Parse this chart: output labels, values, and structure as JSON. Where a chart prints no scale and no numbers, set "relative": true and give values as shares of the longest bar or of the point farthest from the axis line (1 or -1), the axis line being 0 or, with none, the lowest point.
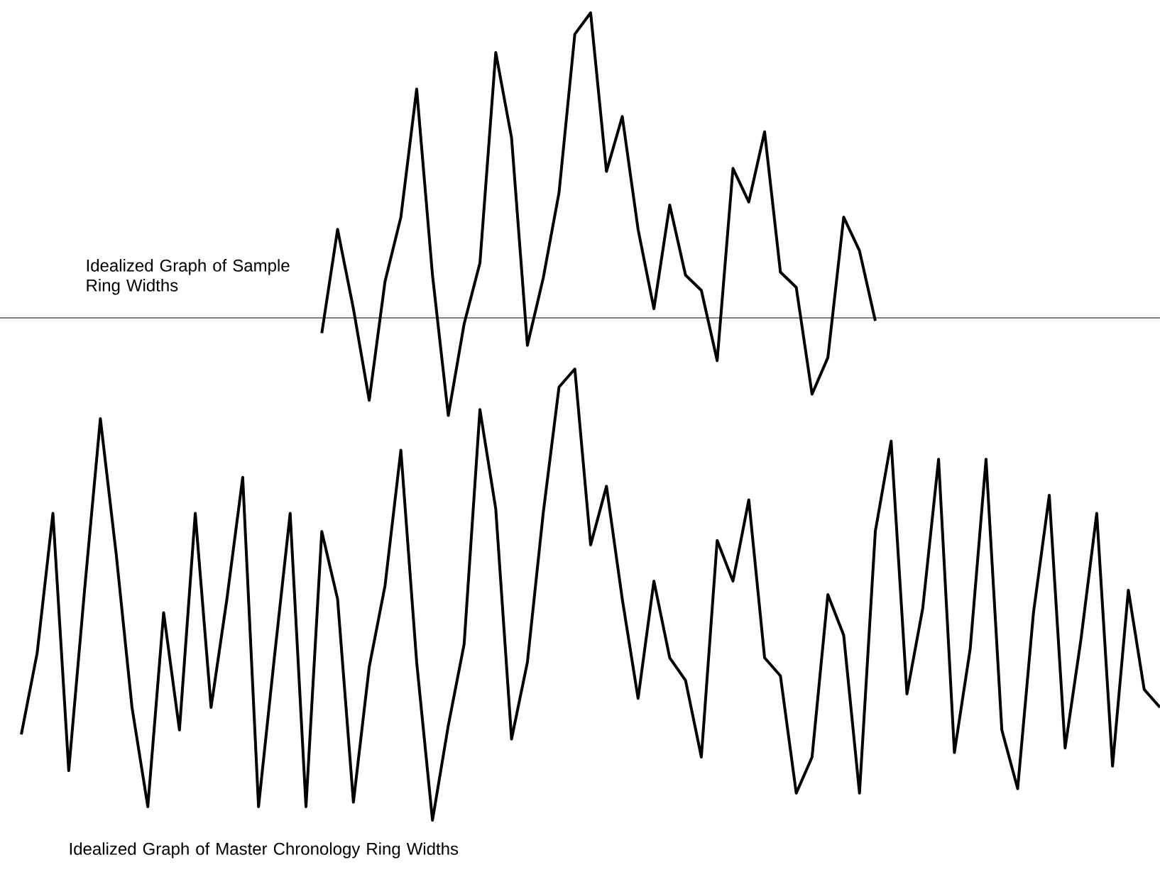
{
  "chart_data": [
    {
      "type": "line",
      "title": "Idealized Graph of Sample Ring Widths",
      "relative": true,
      "categories": [
        null,
        null,
        null,
        null,
        null,
        null,
        null,
        null,
        null,
        null,
        null,
        null,
        null,
        null,
        null,
        null,
        null,
        null,
        null,
        null,
        null,
        null,
        null,
        null,
        null,
        null,
        null,
        null,
        null,
        null,
        null,
        null,
        null,
        null,
        null,
        null,
        null,
        null,
        null,
        null,
        null,
        null,
        null,
        null,
        null,
        null,
        null,
        null,
        null,
        null,
        null,
        null,
        null,
        null,
        null,
        null,
        null,
        null,
        null,
        null,
        null,
        null,
        null,
        null,
        null,
        null,
        null,
        null,
        null,
        null,
        null,
        null,
        null
      ],
      "series": [
        {
          "color": "#000000",
          "values": [
            null,
            null,
            null,
            null,
            null,
            null,
            null,
            null,
            null,
            null,
            null,
            null,
            null,
            null,
            null,
            null,
            null,
            null,
            null,
            -0.05,
            0.29,
            0.03,
            -0.27,
            0.12,
            0.33,
            0.75,
            0.14,
            -0.32,
            -0.02,
            0.18,
            0.87,
            0.59,
            -0.09,
            0.13,
            0.41,
            0.93,
            1,
            0.48,
            0.66,
            0.29,
            0.03,
            0.37,
            0.14,
            0.09,
            -0.14,
            0.49,
            0.38,
            0.61,
            0.15,
            0.1,
            -0.25,
            -0.13,
            0.33,
            0.22,
            -0.01,
            null,
            null,
            null,
            null,
            null,
            null,
            null,
            null,
            null,
            null,
            null,
            null,
            null,
            null,
            null,
            null,
            null,
            null
          ]
        }
      ]
    },
    {
      "type": "line",
      "title": "Idealized Graph of Master Chronology Ring Widths",
      "relative": true,
      "categories": [
        null,
        null,
        null,
        null,
        null,
        null,
        null,
        null,
        null,
        null,
        null,
        null,
        null,
        null,
        null,
        null,
        null,
        null,
        null,
        null,
        null,
        null,
        null,
        null,
        null,
        null,
        null,
        null,
        null,
        null,
        null,
        null,
        null,
        null,
        null,
        null,
        null,
        null,
        null,
        null,
        null,
        null,
        null,
        null,
        null,
        null,
        null,
        null,
        null,
        null,
        null,
        null,
        null,
        null,
        null,
        null,
        null,
        null,
        null,
        null,
        null,
        null,
        null,
        null,
        null,
        null,
        null,
        null,
        null,
        null,
        null,
        null,
        null
      ],
      "series": [
        {
          "color": "#000000",
          "values": [
            0.19,
            0.37,
            0.68,
            0.11,
            0.51,
            0.89,
            0.59,
            0.25,
            0.03,
            0.46,
            0.2,
            0.68,
            0.25,
            0.49,
            0.76,
            0.03,
            0.36,
            0.68,
            0.03,
            0.64,
            0.49,
            0.04,
            0.34,
            0.52,
            0.82,
            0.35,
            0,
            0.21,
            0.39,
            0.91,
            0.69,
            0.18,
            0.35,
            0.68,
            0.96,
            1,
            0.61,
            0.74,
            0.49,
            0.27,
            0.53,
            0.36,
            0.31,
            0.14,
            0.62,
            0.53,
            0.71,
            0.36,
            0.32,
            0.06,
            0.14,
            0.5,
            0.41,
            0.06,
            0.64,
            0.84,
            0.28,
            0.47,
            0.8,
            0.15,
            0.38,
            0.8,
            0.2,
            0.07,
            0.46,
            0.72,
            0.16,
            0.4,
            0.68,
            0.12,
            0.51,
            0.29,
            0.25
          ]
        }
      ]
    }
  ]
}
